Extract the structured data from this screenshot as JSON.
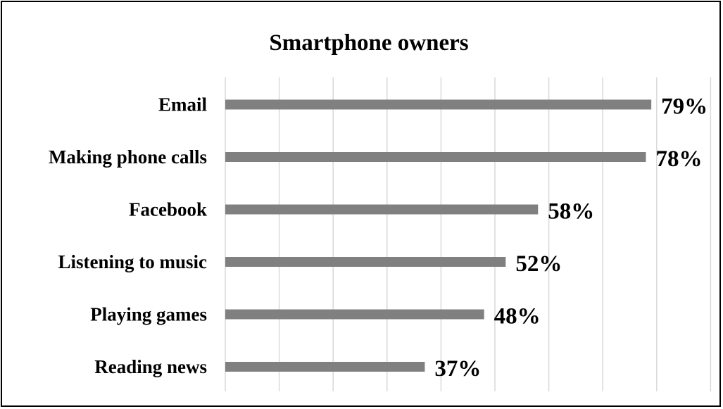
{
  "chart_data": {
    "type": "bar",
    "orientation": "horizontal",
    "title": "Smartphone owners",
    "xlabel": "",
    "ylabel": "",
    "categories": [
      "Email",
      "Making phone calls",
      "Facebook",
      "Listening to music",
      "Playing games",
      "Reading news"
    ],
    "values": [
      79,
      78,
      58,
      52,
      48,
      37
    ],
    "value_labels": [
      "79%",
      "78%",
      "58%",
      "52%",
      "48%",
      "37%"
    ],
    "unit": "%",
    "xlim": [
      0,
      90
    ],
    "grid": true,
    "legend": "none",
    "bar_color": "#808080",
    "grid_color": "#d9d9d9"
  }
}
